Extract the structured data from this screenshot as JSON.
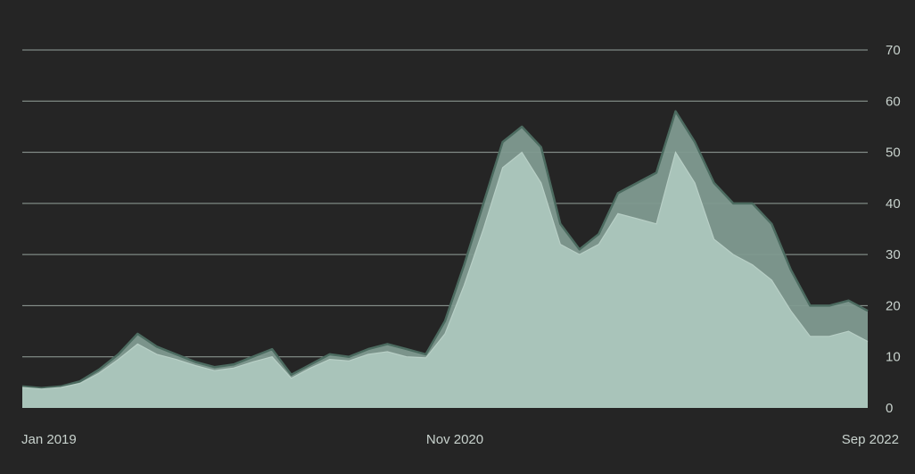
{
  "chart_data": {
    "type": "area",
    "title": "",
    "xlabel": "",
    "ylabel": "",
    "ylim": [
      0,
      70
    ],
    "y_ticks": [
      "0",
      "10",
      "20",
      "30",
      "40",
      "50",
      "60",
      "70"
    ],
    "x_tick_labels": [
      "Jan 2019",
      "Nov 2020",
      "Sep 2022"
    ],
    "grid": true,
    "legend": "none",
    "x": [
      "2019-01",
      "2019-02",
      "2019-03",
      "2019-04",
      "2019-05",
      "2019-06",
      "2019-07",
      "2019-08",
      "2019-09",
      "2019-10",
      "2019-11",
      "2019-12",
      "2020-01",
      "2020-02",
      "2020-03",
      "2020-04",
      "2020-05",
      "2020-06",
      "2020-07",
      "2020-08",
      "2020-09",
      "2020-10",
      "2020-11",
      "2020-12",
      "2021-01",
      "2021-02",
      "2021-03",
      "2021-04",
      "2021-05",
      "2021-06",
      "2021-07",
      "2021-08",
      "2021-09",
      "2021-10",
      "2021-11",
      "2021-12",
      "2022-01",
      "2022-02",
      "2022-03",
      "2022-04",
      "2022-05",
      "2022-06",
      "2022-07",
      "2022-08",
      "2022-09"
    ],
    "series": [
      {
        "values": [
          4.2,
          3.9,
          4.2,
          5.2,
          7.5,
          10.5,
          14.5,
          12.0,
          10.5,
          9.0,
          8.0,
          8.5,
          10.0,
          11.5,
          6.5,
          8.5,
          10.5,
          10.0,
          11.5,
          12.5,
          11.5,
          10.5,
          17.0,
          28.0,
          40.0,
          52.0,
          55.0,
          51.0,
          36.0,
          31.0,
          34.0,
          42.0,
          44.0,
          46.0,
          58.0,
          52.0,
          44.0,
          40.0,
          40.0,
          36.0,
          27.0,
          20.0,
          20.0,
          21.0,
          19.0
        ]
      },
      {
        "values": [
          4.0,
          3.7,
          4.0,
          4.8,
          6.8,
          9.5,
          12.5,
          10.5,
          9.5,
          8.3,
          7.3,
          7.8,
          9.0,
          10.0,
          5.8,
          7.8,
          9.5,
          9.2,
          10.5,
          11.0,
          10.0,
          9.8,
          14.5,
          24.0,
          35.0,
          47.0,
          50.0,
          44.0,
          32.0,
          30.0,
          32.0,
          38.0,
          37.0,
          36.0,
          50.0,
          44.0,
          33.0,
          30.0,
          28.0,
          25.0,
          19.0,
          14.0,
          14.0,
          15.0,
          13.0
        ]
      }
    ]
  }
}
